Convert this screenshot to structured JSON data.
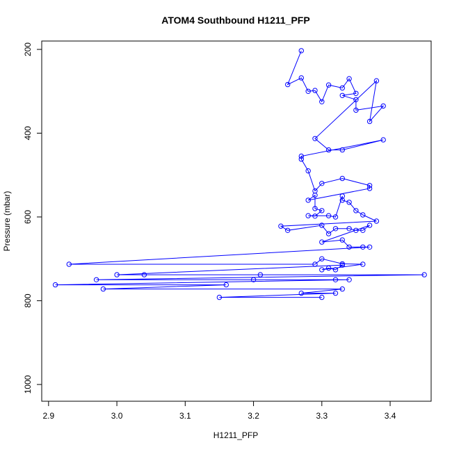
{
  "chart_data": {
    "type": "scatter",
    "title": "ATOM4 Southbound H1211_PFP",
    "xlabel": "H1211_PFP",
    "ylabel": "Pressure (mbar)",
    "xlim": [
      2.89,
      3.46
    ],
    "ylim": [
      1040,
      180
    ],
    "y_reversed": true,
    "xticks": [
      2.9,
      3.0,
      3.1,
      3.2,
      3.3,
      3.4
    ],
    "xtick_labels": [
      "2.9",
      "3.0",
      "3.1",
      "3.2",
      "3.3",
      "3.4"
    ],
    "yticks": [
      200,
      400,
      600,
      800,
      1000
    ],
    "ytick_labels": [
      "200",
      "400",
      "600",
      "800",
      "1000"
    ],
    "grid": false,
    "legend": "none",
    "series": [
      {
        "color": "#0000ff",
        "marker": "open-circle",
        "line": true,
        "points": [
          [
            3.27,
            203
          ],
          [
            3.25,
            284
          ],
          [
            3.27,
            268
          ],
          [
            3.28,
            300
          ],
          [
            3.29,
            298
          ],
          [
            3.3,
            325
          ],
          [
            3.31,
            285
          ],
          [
            3.33,
            292
          ],
          [
            3.34,
            270
          ],
          [
            3.35,
            305
          ],
          [
            3.33,
            310
          ],
          [
            3.35,
            320
          ],
          [
            3.35,
            345
          ],
          [
            3.39,
            335
          ],
          [
            3.37,
            372
          ],
          [
            3.38,
            275
          ],
          [
            3.29,
            413
          ],
          [
            3.31,
            440
          ],
          [
            3.33,
            440
          ],
          [
            3.39,
            416
          ],
          [
            3.27,
            455
          ],
          [
            3.27,
            462
          ],
          [
            3.28,
            490
          ],
          [
            3.29,
            538
          ],
          [
            3.3,
            520
          ],
          [
            3.33,
            508
          ],
          [
            3.37,
            525
          ],
          [
            3.37,
            532
          ],
          [
            3.28,
            560
          ],
          [
            3.29,
            548
          ],
          [
            3.29,
            580
          ],
          [
            3.3,
            585
          ],
          [
            3.29,
            598
          ],
          [
            3.28,
            597
          ],
          [
            3.31,
            597
          ],
          [
            3.32,
            600
          ],
          [
            3.33,
            550
          ],
          [
            3.33,
            560
          ],
          [
            3.34,
            565
          ],
          [
            3.35,
            585
          ],
          [
            3.36,
            595
          ],
          [
            3.38,
            610
          ],
          [
            3.24,
            622
          ],
          [
            3.25,
            632
          ],
          [
            3.3,
            620
          ],
          [
            3.31,
            640
          ],
          [
            3.32,
            628
          ],
          [
            3.34,
            628
          ],
          [
            3.35,
            632
          ],
          [
            3.36,
            632
          ],
          [
            3.37,
            620
          ],
          [
            3.3,
            660
          ],
          [
            3.33,
            655
          ],
          [
            3.34,
            672
          ],
          [
            3.36,
            672
          ],
          [
            3.37,
            672
          ],
          [
            2.93,
            713
          ],
          [
            3.29,
            713
          ],
          [
            3.3,
            700
          ],
          [
            3.33,
            712
          ],
          [
            3.36,
            713
          ],
          [
            3.3,
            726
          ],
          [
            3.31,
            722
          ],
          [
            3.32,
            726
          ],
          [
            3.33,
            715
          ],
          [
            3.0,
            738
          ],
          [
            3.04,
            738
          ],
          [
            3.21,
            738
          ],
          [
            3.45,
            738
          ],
          [
            2.97,
            750
          ],
          [
            3.2,
            750
          ],
          [
            3.32,
            750
          ],
          [
            3.34,
            750
          ],
          [
            2.91,
            762
          ],
          [
            3.16,
            762
          ],
          [
            2.98,
            772
          ],
          [
            3.33,
            772
          ],
          [
            3.27,
            782
          ],
          [
            3.32,
            782
          ],
          [
            3.15,
            792
          ],
          [
            3.3,
            792
          ]
        ]
      }
    ]
  }
}
